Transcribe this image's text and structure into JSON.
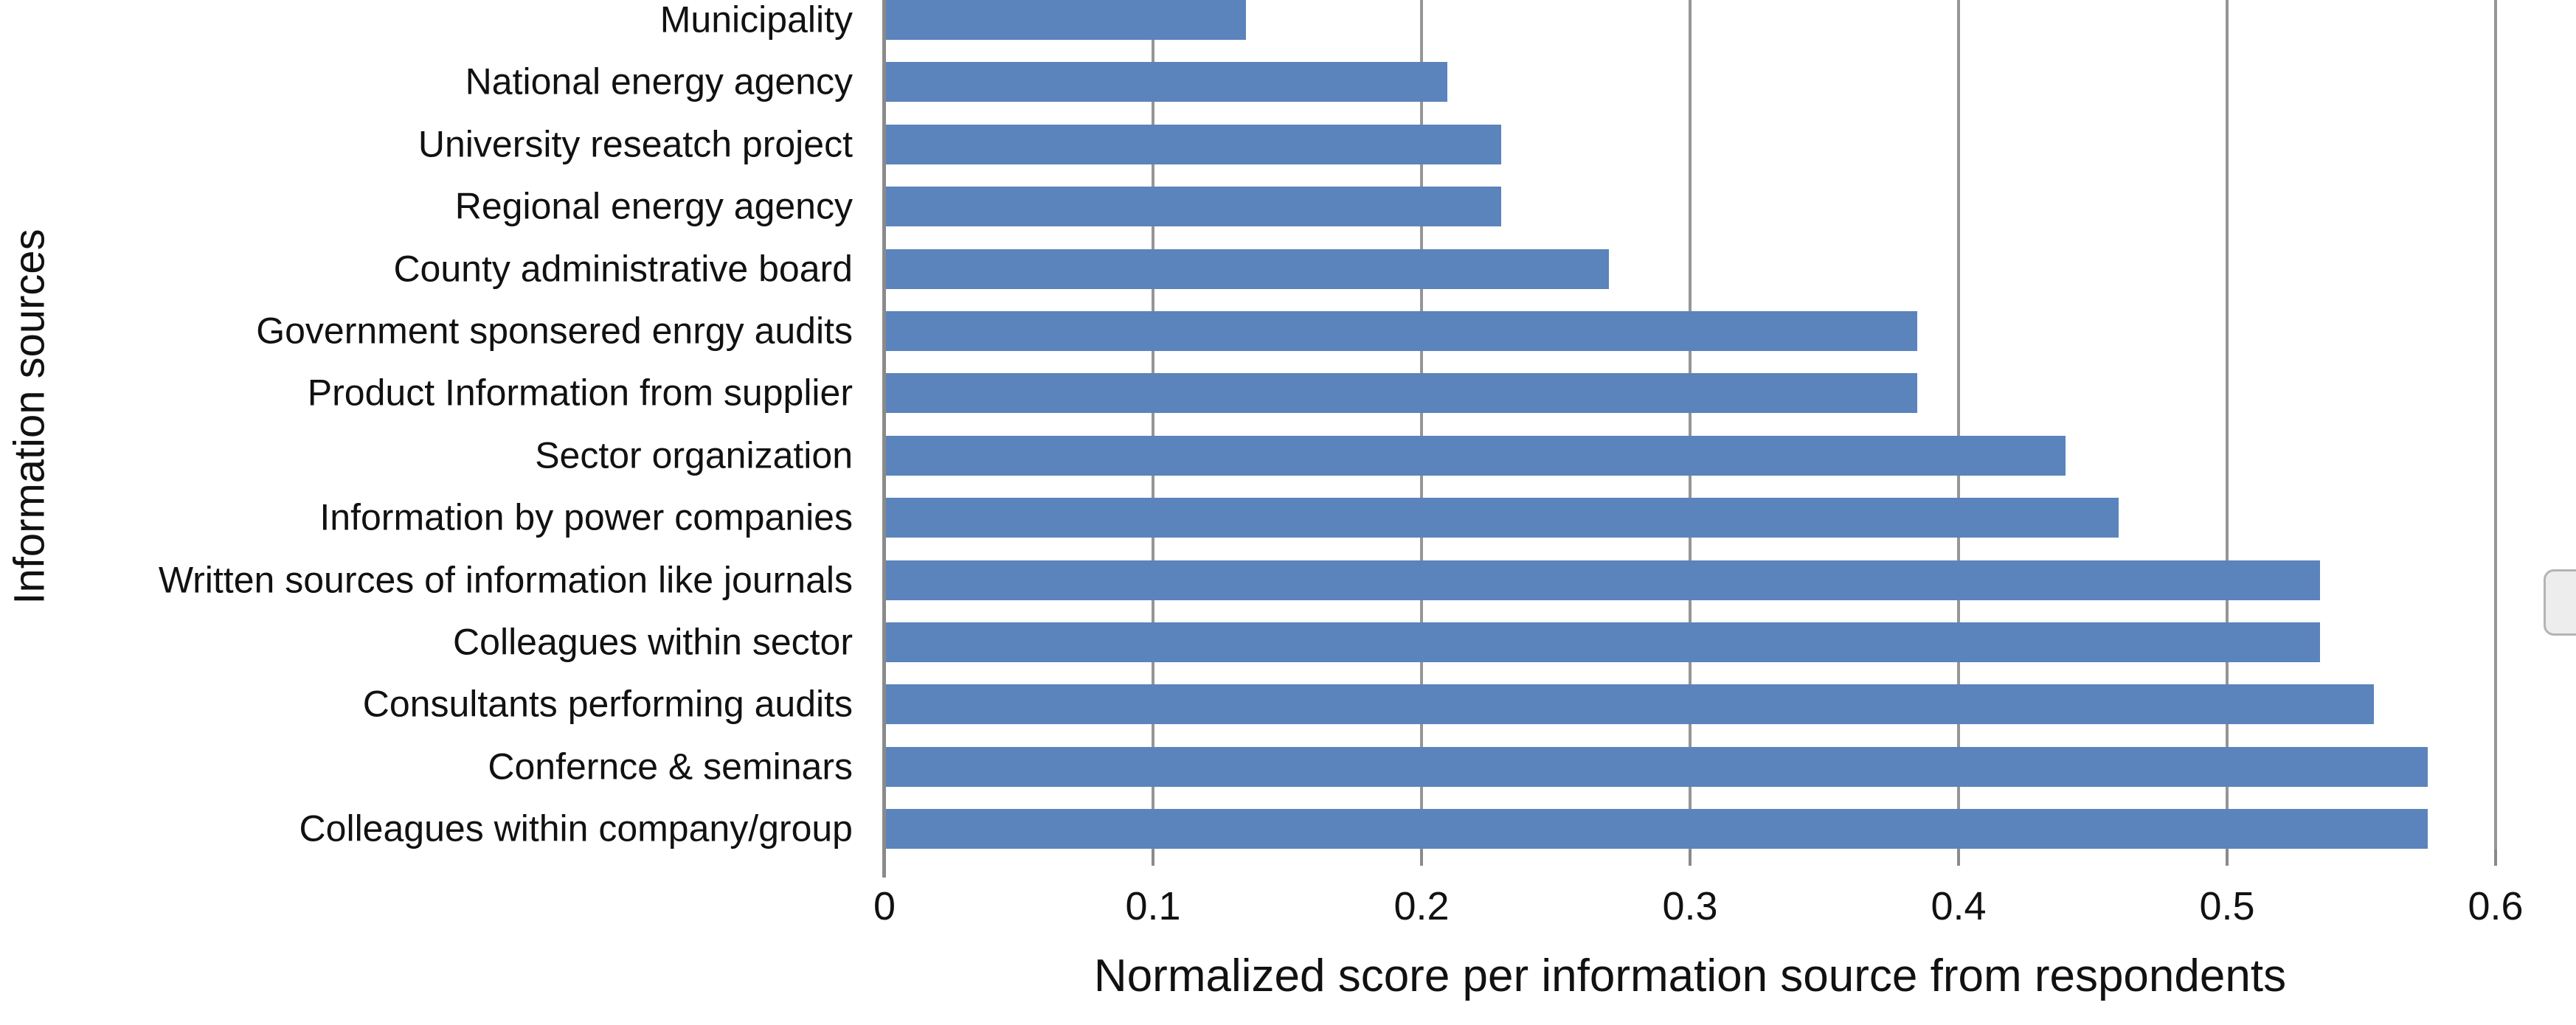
{
  "chart_data": {
    "type": "bar",
    "orientation": "horizontal",
    "title": "",
    "xlabel": "Normalized score per information source from respondents",
    "ylabel": "Information sources",
    "categories_order": "top-to-bottom",
    "categories": [
      "Municipality",
      "National energy agency",
      "University reseatch project",
      "Regional energy agency",
      "County administrative board",
      "Government sponsered enrgy audits",
      "Product Information from supplier",
      "Sector organization",
      "Information by power companies",
      "Written sources of information like journals",
      "Colleagues within sector",
      "Consultants performing audits",
      "Confernce & seminars",
      "Colleagues within company/group"
    ],
    "values": [
      0.135,
      0.21,
      0.23,
      0.23,
      0.27,
      0.385,
      0.385,
      0.44,
      0.46,
      0.535,
      0.535,
      0.555,
      0.575,
      0.575
    ],
    "xlim": [
      0,
      0.6
    ],
    "xticks": [
      0,
      0.1,
      0.2,
      0.3,
      0.4,
      0.5,
      0.6
    ],
    "xtick_labels": [
      "0",
      "0.1",
      "0.2",
      "0.3",
      "0.4",
      "0.5",
      "0.6"
    ],
    "grid": "vertical-gridlines-on",
    "legend": "none",
    "bar_color": "#5B83BC",
    "gridline_color": "#969696",
    "axis_color": "#8A8A8A",
    "text_color": "#111111",
    "background_color": "#FFFFFF"
  }
}
